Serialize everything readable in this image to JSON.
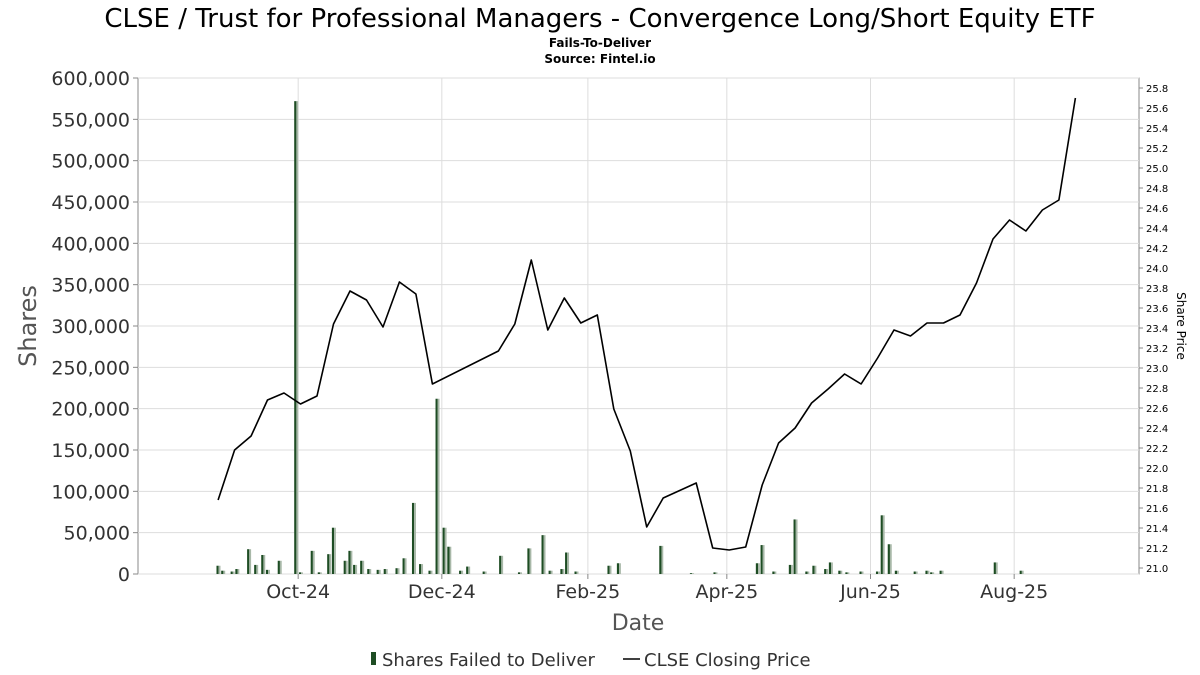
{
  "chart_data": {
    "type": "bar",
    "title": "CLSE / Trust for Professional Managers - Convergence Long/Short Equity ETF",
    "subtitle": "Fails-To-Deliver",
    "source": "Source: Fintel.io",
    "xlabel": "Date",
    "ylabel": "Shares",
    "y2label": "Share Price",
    "ylim": [
      0,
      600000
    ],
    "y2lim": [
      20.94,
      25.9
    ],
    "yticks": [
      "0",
      "50,000",
      "100,000",
      "150,000",
      "200,000",
      "250,000",
      "300,000",
      "350,000",
      "400,000",
      "450,000",
      "500,000",
      "550,000",
      "600,000"
    ],
    "y2ticks": [
      "21.0",
      "21.2",
      "21.4",
      "21.6",
      "21.8",
      "22.0",
      "22.2",
      "22.4",
      "22.6",
      "22.8",
      "23.0",
      "23.2",
      "23.4",
      "23.6",
      "23.8",
      "24.0",
      "24.2",
      "24.4",
      "24.6",
      "24.8",
      "25.0",
      "25.2",
      "25.4",
      "25.6",
      "25.8"
    ],
    "xticks": [
      {
        "label": "Oct-24",
        "date": "2024-10-01"
      },
      {
        "label": "Dec-24",
        "date": "2024-12-01"
      },
      {
        "label": "Feb-25",
        "date": "2025-02-01"
      },
      {
        "label": "Apr-25",
        "date": "2025-04-01"
      },
      {
        "label": "Jun-25",
        "date": "2025-06-01"
      },
      {
        "label": "Aug-25",
        "date": "2025-08-01"
      }
    ],
    "grid": true,
    "legend_position": "bottom",
    "series": [
      {
        "name": "Shares Failed to Deliver",
        "type": "bar",
        "color": "#1e4d24",
        "points": [
          {
            "date": "2024-08-28",
            "value": 10000
          },
          {
            "date": "2024-08-30",
            "value": 4000
          },
          {
            "date": "2024-09-03",
            "value": 3000
          },
          {
            "date": "2024-09-05",
            "value": 6000
          },
          {
            "date": "2024-09-10",
            "value": 30000
          },
          {
            "date": "2024-09-13",
            "value": 11000
          },
          {
            "date": "2024-09-16",
            "value": 23000
          },
          {
            "date": "2024-09-18",
            "value": 5000
          },
          {
            "date": "2024-09-23",
            "value": 16000
          },
          {
            "date": "2024-09-30",
            "value": 572000
          },
          {
            "date": "2024-10-02",
            "value": 2000
          },
          {
            "date": "2024-10-07",
            "value": 28000
          },
          {
            "date": "2024-10-10",
            "value": 2000
          },
          {
            "date": "2024-10-14",
            "value": 24000
          },
          {
            "date": "2024-10-16",
            "value": 56000
          },
          {
            "date": "2024-10-21",
            "value": 16000
          },
          {
            "date": "2024-10-23",
            "value": 28000
          },
          {
            "date": "2024-10-25",
            "value": 11000
          },
          {
            "date": "2024-10-28",
            "value": 16000
          },
          {
            "date": "2024-10-31",
            "value": 6000
          },
          {
            "date": "2024-11-04",
            "value": 5000
          },
          {
            "date": "2024-11-07",
            "value": 6000
          },
          {
            "date": "2024-11-12",
            "value": 7000
          },
          {
            "date": "2024-11-15",
            "value": 19000
          },
          {
            "date": "2024-11-19",
            "value": 86000
          },
          {
            "date": "2024-11-22",
            "value": 12000
          },
          {
            "date": "2024-11-26",
            "value": 4000
          },
          {
            "date": "2024-11-29",
            "value": 212000
          },
          {
            "date": "2024-12-02",
            "value": 56000
          },
          {
            "date": "2024-12-04",
            "value": 33000
          },
          {
            "date": "2024-12-09",
            "value": 4000
          },
          {
            "date": "2024-12-12",
            "value": 9000
          },
          {
            "date": "2024-12-19",
            "value": 3000
          },
          {
            "date": "2024-12-26",
            "value": 22000
          },
          {
            "date": "2025-01-03",
            "value": 2000
          },
          {
            "date": "2025-01-07",
            "value": 31000
          },
          {
            "date": "2025-01-13",
            "value": 47000
          },
          {
            "date": "2025-01-16",
            "value": 4000
          },
          {
            "date": "2025-01-21",
            "value": 6000
          },
          {
            "date": "2025-01-23",
            "value": 26000
          },
          {
            "date": "2025-01-27",
            "value": 3000
          },
          {
            "date": "2025-02-10",
            "value": 10000
          },
          {
            "date": "2025-02-14",
            "value": 13000
          },
          {
            "date": "2025-03-04",
            "value": 34000
          },
          {
            "date": "2025-03-17",
            "value": 1000
          },
          {
            "date": "2025-03-27",
            "value": 2000
          },
          {
            "date": "2025-04-14",
            "value": 13000
          },
          {
            "date": "2025-04-16",
            "value": 35000
          },
          {
            "date": "2025-04-21",
            "value": 3000
          },
          {
            "date": "2025-04-28",
            "value": 11000
          },
          {
            "date": "2025-04-30",
            "value": 66000
          },
          {
            "date": "2025-05-05",
            "value": 3000
          },
          {
            "date": "2025-05-08",
            "value": 10000
          },
          {
            "date": "2025-05-13",
            "value": 6000
          },
          {
            "date": "2025-05-15",
            "value": 14000
          },
          {
            "date": "2025-05-19",
            "value": 4000
          },
          {
            "date": "2025-05-22",
            "value": 2000
          },
          {
            "date": "2025-05-28",
            "value": 3000
          },
          {
            "date": "2025-06-04",
            "value": 3000
          },
          {
            "date": "2025-06-06",
            "value": 71000
          },
          {
            "date": "2025-06-09",
            "value": 36000
          },
          {
            "date": "2025-06-12",
            "value": 4000
          },
          {
            "date": "2025-06-20",
            "value": 3000
          },
          {
            "date": "2025-06-25",
            "value": 4000
          },
          {
            "date": "2025-06-27",
            "value": 2000
          },
          {
            "date": "2025-07-01",
            "value": 4000
          },
          {
            "date": "2025-07-24",
            "value": 14000
          },
          {
            "date": "2025-08-04",
            "value": 4000
          }
        ]
      },
      {
        "name": "CLSE Closing Price",
        "type": "line",
        "color": "#000000",
        "points": [
          {
            "date": "2024-08-28",
            "value": 21.68
          },
          {
            "date": "2024-09-04",
            "value": 22.18
          },
          {
            "date": "2024-09-11",
            "value": 22.32
          },
          {
            "date": "2024-09-18",
            "value": 22.68
          },
          {
            "date": "2024-09-25",
            "value": 22.75
          },
          {
            "date": "2024-10-02",
            "value": 22.64
          },
          {
            "date": "2024-10-09",
            "value": 22.72
          },
          {
            "date": "2024-10-16",
            "value": 23.44
          },
          {
            "date": "2024-10-23",
            "value": 23.77
          },
          {
            "date": "2024-10-30",
            "value": 23.68
          },
          {
            "date": "2024-11-06",
            "value": 23.41
          },
          {
            "date": "2024-11-13",
            "value": 23.86
          },
          {
            "date": "2024-11-20",
            "value": 23.74
          },
          {
            "date": "2024-11-27",
            "value": 22.84
          },
          {
            "date": "2024-12-25",
            "value": 23.17
          },
          {
            "date": "2025-01-01",
            "value": 23.44
          },
          {
            "date": "2025-01-08",
            "value": 24.08
          },
          {
            "date": "2025-01-15",
            "value": 23.38
          },
          {
            "date": "2025-01-22",
            "value": 23.7
          },
          {
            "date": "2025-01-29",
            "value": 23.45
          },
          {
            "date": "2025-02-05",
            "value": 23.53
          },
          {
            "date": "2025-02-12",
            "value": 22.59
          },
          {
            "date": "2025-02-19",
            "value": 22.17
          },
          {
            "date": "2025-02-26",
            "value": 21.41
          },
          {
            "date": "2025-03-05",
            "value": 21.7
          },
          {
            "date": "2025-03-19",
            "value": 21.85
          },
          {
            "date": "2025-03-26",
            "value": 21.2
          },
          {
            "date": "2025-04-02",
            "value": 21.18
          },
          {
            "date": "2025-04-09",
            "value": 21.21
          },
          {
            "date": "2025-04-16",
            "value": 21.83
          },
          {
            "date": "2025-04-23",
            "value": 22.25
          },
          {
            "date": "2025-04-30",
            "value": 22.4
          },
          {
            "date": "2025-05-07",
            "value": 22.65
          },
          {
            "date": "2025-05-14",
            "value": 22.79
          },
          {
            "date": "2025-05-21",
            "value": 22.94
          },
          {
            "date": "2025-05-28",
            "value": 22.84
          },
          {
            "date": "2025-06-04",
            "value": 23.1
          },
          {
            "date": "2025-06-11",
            "value": 23.38
          },
          {
            "date": "2025-06-18",
            "value": 23.32
          },
          {
            "date": "2025-06-25",
            "value": 23.45
          },
          {
            "date": "2025-07-02",
            "value": 23.45
          },
          {
            "date": "2025-07-09",
            "value": 23.53
          },
          {
            "date": "2025-07-16",
            "value": 23.85
          },
          {
            "date": "2025-07-23",
            "value": 24.29
          },
          {
            "date": "2025-07-30",
            "value": 24.48
          },
          {
            "date": "2025-08-06",
            "value": 24.37
          },
          {
            "date": "2025-08-13",
            "value": 24.58
          },
          {
            "date": "2025-08-20",
            "value": 24.68
          },
          {
            "date": "2025-08-27",
            "value": 25.7
          }
        ]
      }
    ]
  }
}
